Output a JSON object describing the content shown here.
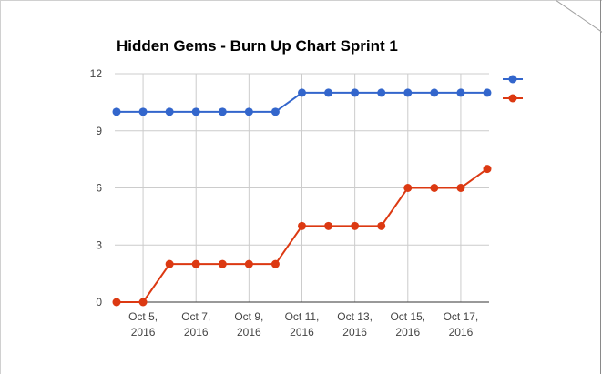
{
  "chart_data": {
    "type": "line",
    "title": "Hidden Gems - Burn Up Chart Sprint 1",
    "xlabel": "",
    "ylabel": "",
    "x": [
      "2016-10-04",
      "2016-10-05",
      "2016-10-06",
      "2016-10-07",
      "2016-10-08",
      "2016-10-09",
      "2016-10-10",
      "2016-10-11",
      "2016-10-12",
      "2016-10-13",
      "2016-10-14",
      "2016-10-15",
      "2016-10-16",
      "2016-10-17",
      "2016-10-18"
    ],
    "x_tick_labels": [
      {
        "x": "2016-10-05",
        "line1": "Oct 5,",
        "line2": "2016"
      },
      {
        "x": "2016-10-07",
        "line1": "Oct 7,",
        "line2": "2016"
      },
      {
        "x": "2016-10-09",
        "line1": "Oct 9,",
        "line2": "2016"
      },
      {
        "x": "2016-10-11",
        "line1": "Oct 11,",
        "line2": "2016"
      },
      {
        "x": "2016-10-13",
        "line1": "Oct 13,",
        "line2": "2016"
      },
      {
        "x": "2016-10-15",
        "line1": "Oct 15,",
        "line2": "2016"
      },
      {
        "x": "2016-10-17",
        "line1": "Oct 17,",
        "line2": "2016"
      }
    ],
    "y_ticks": [
      0,
      3,
      6,
      9,
      12
    ],
    "ylim": [
      0,
      12
    ],
    "grid": true,
    "legend": "right",
    "series": [
      {
        "color": "#3366cc",
        "values": [
          10,
          10,
          10,
          10,
          10,
          10,
          10,
          11,
          11,
          11,
          11,
          11,
          11,
          11,
          11
        ]
      },
      {
        "color": "#dc3912",
        "values": [
          0,
          0,
          2,
          2,
          2,
          2,
          2,
          4,
          4,
          4,
          4,
          6,
          6,
          6,
          7
        ]
      }
    ]
  }
}
